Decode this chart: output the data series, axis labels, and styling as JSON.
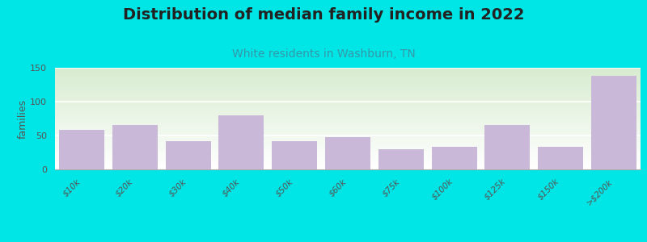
{
  "title": "Distribution of median family income in 2022",
  "subtitle": "White residents in Washburn, TN",
  "categories": [
    "$10k",
    "$20k",
    "$30k",
    "$40k",
    "$50k",
    "$60k",
    "$75k",
    "$100k",
    "$125k",
    "$150k",
    ">$200k"
  ],
  "values": [
    58,
    65,
    42,
    80,
    42,
    48,
    30,
    33,
    65,
    33,
    138
  ],
  "bar_color": "#c9b8d8",
  "background_color": "#00e5e5",
  "plot_bg_top": "#d8ecd0",
  "plot_bg_bottom": "#ffffff",
  "title_fontsize": 14,
  "subtitle_fontsize": 10,
  "subtitle_color": "#3399aa",
  "title_color": "#222222",
  "ylabel": "families",
  "ylim": [
    0,
    150
  ],
  "yticks": [
    0,
    50,
    100,
    150
  ]
}
